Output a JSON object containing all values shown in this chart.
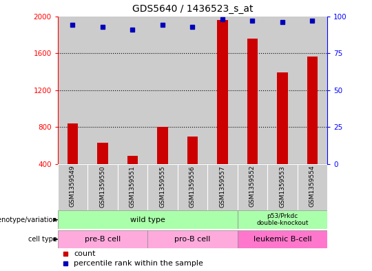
{
  "title": "GDS5640 / 1436523_s_at",
  "samples": [
    "GSM1359549",
    "GSM1359550",
    "GSM1359551",
    "GSM1359555",
    "GSM1359556",
    "GSM1359557",
    "GSM1359552",
    "GSM1359553",
    "GSM1359554"
  ],
  "counts": [
    840,
    630,
    490,
    800,
    700,
    1960,
    1760,
    1390,
    1560
  ],
  "percentiles": [
    94,
    93,
    91,
    94,
    93,
    98,
    97,
    96,
    97
  ],
  "ylim_left": [
    400,
    2000
  ],
  "ylim_right": [
    0,
    100
  ],
  "yticks_left": [
    400,
    800,
    1200,
    1600,
    2000
  ],
  "yticks_right": [
    0,
    25,
    50,
    75,
    100
  ],
  "bar_color": "#cc0000",
  "dot_color": "#0000bb",
  "genotype_wt_label": "wild type",
  "genotype_p53_label": "p53/Prkdc\ndouble-knockout",
  "genotype_color": "#aaffaa",
  "cell_pre_label": "pre-B cell",
  "cell_pro_label": "pro-B cell",
  "cell_leuk_label": "leukemic B-cell",
  "cell_color_light": "#ffaadd",
  "cell_color_dark": "#ff77cc",
  "sample_bg_color": "#cccccc",
  "bar_width": 0.35,
  "title_fontsize": 10,
  "tick_fontsize": 7.5,
  "sample_fontsize": 6.5,
  "annot_fontsize": 8,
  "legend_fontsize": 8
}
